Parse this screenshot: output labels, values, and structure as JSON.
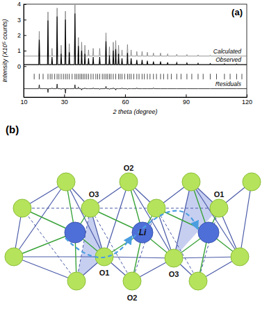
{
  "chart_data": {
    "type": "line",
    "title": "(a)",
    "x_label": "2 theta (degree)",
    "y_label": "Intensity (X10⁵ counts)",
    "xlim": [
      10,
      120
    ],
    "xticks": [
      10,
      30,
      60,
      90,
      120
    ],
    "ylim": [
      -2,
      4
    ],
    "yticks": [
      0,
      1,
      2,
      3,
      4
    ],
    "x": [
      10,
      17.45,
      17.7,
      17.95,
      21.75,
      22.0,
      22.25,
      23.75,
      24.0,
      24.25,
      26.25,
      26.5,
      26.75,
      28.25,
      28.5,
      28.75,
      30.35,
      30.6,
      30.85,
      32.25,
      32.5,
      32.75,
      35.05,
      35.3,
      35.55,
      36.75,
      37.0,
      37.25,
      38.35,
      38.6,
      38.85,
      39.95,
      40.2,
      40.45,
      41.75,
      42.0,
      42.25,
      44.05,
      44.3,
      44.55,
      47.25,
      47.5,
      47.75,
      50.35,
      50.6,
      50.85,
      52.05,
      52.3,
      52.55,
      53.95,
      54.2,
      54.45,
      55.15,
      55.4,
      55.65,
      56.55,
      56.8,
      57.05,
      58.25,
      58.5,
      58.75,
      60.95,
      61.2,
      61.45,
      62.75,
      63.0,
      63.25,
      65.55,
      65.8,
      66.05,
      68.15,
      68.4,
      68.65,
      70.75,
      71.0,
      71.25,
      73.75,
      74.0,
      74.25,
      77.25,
      77.5,
      77.75,
      80.75,
      81.0,
      81.25,
      85.25,
      85.5,
      85.75,
      90.25,
      90.5,
      90.75,
      95.75,
      96.0,
      96.25,
      101.75,
      102.0,
      102.25,
      108.75,
      109.0,
      109.25,
      114.75,
      115.0,
      115.25,
      120
    ],
    "series": [
      {
        "name": "Calculated",
        "color": "#7a7a7a",
        "line_style": "solid",
        "values": [
          0.65,
          0.65,
          2.25,
          0.65,
          0.65,
          3.5,
          0.65,
          0.65,
          1.15,
          0.65,
          0.65,
          3.75,
          0.65,
          0.65,
          1.35,
          0.65,
          0.65,
          3.55,
          0.65,
          0.65,
          1.45,
          0.65,
          0.65,
          3.95,
          0.65,
          0.65,
          1.85,
          0.65,
          0.65,
          1.55,
          0.65,
          0.65,
          1.35,
          0.65,
          0.65,
          1.05,
          0.65,
          0.65,
          1.15,
          0.65,
          0.65,
          1.15,
          0.65,
          0.65,
          2.15,
          0.65,
          0.65,
          1.25,
          0.65,
          0.65,
          1.55,
          0.65,
          0.65,
          1.65,
          0.65,
          0.65,
          1.35,
          0.65,
          0.65,
          1.05,
          0.65,
          0.65,
          1.4,
          0.65,
          0.65,
          1.05,
          0.65,
          0.65,
          0.95,
          0.65,
          0.65,
          0.95,
          0.65,
          0.65,
          0.9,
          0.65,
          0.65,
          0.85,
          0.65,
          0.65,
          0.85,
          0.65,
          0.65,
          0.8,
          0.65,
          0.65,
          0.77,
          0.65,
          0.65,
          0.75,
          0.65,
          0.65,
          0.73,
          0.65,
          0.65,
          0.71,
          0.65,
          0.65,
          0.7,
          0.65,
          0.65,
          0.69,
          0.65,
          0.65
        ]
      },
      {
        "name": "Observed",
        "color": "#000000",
        "line_style": "solid",
        "values": [
          0.1,
          0.1,
          1.7,
          0.1,
          0.1,
          2.95,
          0.1,
          0.1,
          0.6,
          0.1,
          0.1,
          3.2,
          0.1,
          0.1,
          0.8,
          0.1,
          0.1,
          3.0,
          0.1,
          0.1,
          0.9,
          0.1,
          0.1,
          3.4,
          0.1,
          0.1,
          1.3,
          0.1,
          0.1,
          1.0,
          0.1,
          0.1,
          0.8,
          0.1,
          0.1,
          0.5,
          0.1,
          0.1,
          0.6,
          0.1,
          0.1,
          0.6,
          0.1,
          0.1,
          1.6,
          0.1,
          0.1,
          0.7,
          0.1,
          0.1,
          1.0,
          0.1,
          0.1,
          1.1,
          0.1,
          0.1,
          0.8,
          0.1,
          0.1,
          0.5,
          0.1,
          0.1,
          0.85,
          0.1,
          0.1,
          0.5,
          0.1,
          0.1,
          0.4,
          0.1,
          0.1,
          0.4,
          0.1,
          0.1,
          0.35,
          0.1,
          0.1,
          0.3,
          0.1,
          0.1,
          0.3,
          0.1,
          0.1,
          0.25,
          0.1,
          0.1,
          0.22,
          0.1,
          0.1,
          0.2,
          0.1,
          0.1,
          0.18,
          0.1,
          0.1,
          0.16,
          0.1,
          0.1,
          0.15,
          0.1,
          0.1,
          0.14,
          0.1,
          0.1
        ]
      },
      {
        "name": "Residuals",
        "color": "#000000",
        "line_style": "solid",
        "values": [
          -1.45,
          -1.45,
          -1.2,
          -1.45,
          -1.45,
          -1.7,
          -1.45,
          -1.45,
          -1.4,
          -1.45,
          -1.45,
          -1.15,
          -1.45,
          -1.45,
          -1.5,
          -1.45,
          -1.45,
          -1.75,
          -1.45,
          -1.45,
          -1.45,
          -1.45,
          -1.45,
          -1.2,
          -1.45,
          -1.45,
          -1.35,
          -1.45,
          -1.45,
          -1.55,
          -1.45,
          -1.45,
          -1.4,
          -1.45,
          -1.45,
          -1.45,
          -1.45,
          -1.45,
          -1.4,
          -1.45,
          -1.45,
          -1.5,
          -1.45,
          -1.45,
          -1.3,
          -1.45,
          -1.45,
          -1.5,
          -1.45,
          -1.45,
          -1.4,
          -1.45,
          -1.45,
          -1.55,
          -1.45,
          -1.45,
          -1.45,
          -1.45,
          -1.45,
          -1.4,
          -1.45,
          -1.45,
          -1.5,
          -1.45,
          -1.45,
          -1.45,
          -1.45,
          -1.45,
          -1.4,
          -1.45,
          -1.45,
          -1.45,
          -1.45,
          -1.45,
          -1.45,
          -1.45,
          -1.45,
          -1.4,
          -1.45,
          -1.45,
          -1.45,
          -1.45,
          -1.45,
          -1.45,
          -1.45,
          -1.45,
          -1.45,
          -1.45,
          -1.45,
          -1.45,
          -1.45,
          -1.45,
          -1.45,
          -1.45,
          -1.45,
          -1.45,
          -1.45,
          -1.45,
          -1.45,
          -1.45,
          -1.45,
          -1.45,
          -1.45,
          -1.45
        ]
      }
    ],
    "reflections": [
      15.2,
      17.7,
      19.6,
      22.0,
      23.1,
      24.0,
      25.3,
      26.5,
      27.4,
      28.5,
      29.6,
      30.6,
      31.5,
      32.5,
      33.9,
      35.3,
      36.1,
      37.0,
      37.8,
      38.6,
      39.4,
      40.2,
      41.1,
      42.0,
      43.2,
      44.3,
      45.6,
      46.5,
      47.5,
      48.8,
      49.7,
      50.6,
      51.4,
      52.3,
      53.1,
      54.2,
      55.4,
      56.8,
      57.6,
      58.5,
      59.8,
      61.2,
      62.1,
      63.0,
      64.3,
      65.8,
      66.9,
      68.4,
      69.5,
      71.0,
      72.3,
      74.0,
      75.5,
      77.5,
      79.0,
      81.0,
      82.8,
      85.5,
      87.6,
      90.5,
      92.9,
      96.0,
      98.5,
      102.0,
      105.1,
      109.0,
      111.8,
      115.0,
      117.6
    ]
  },
  "diagram": {
    "title": "(b)",
    "atom_labels": [
      "O2",
      "O3",
      "O1",
      "Li",
      "O1",
      "O3",
      "O2"
    ]
  }
}
